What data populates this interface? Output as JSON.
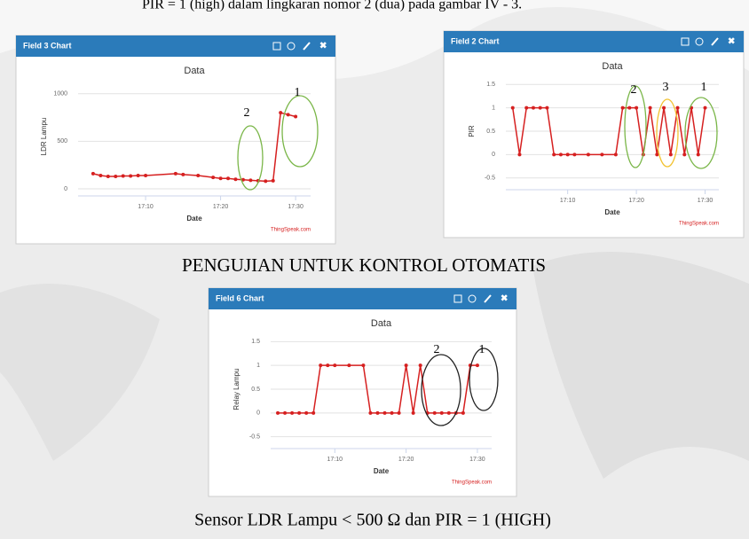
{
  "intro_text": "PIR = 1 (high) dalam lingkaran nomor 2 (dua) pada gambar IV - 3.",
  "heading": "PENGUJIAN UNTUK KONTROL OTOMATIS",
  "caption": "Sensor LDR Lampu < 500 Ω dan PIR = 1 (HIGH)",
  "chart_data": [
    {
      "type": "line",
      "panel_title": "Field 3 Chart",
      "title": "Data",
      "ylabel": "LDR Lampu",
      "xlabel": "Date",
      "credit": "ThingSpeak.com",
      "color": "#d62020",
      "grid": true,
      "x": [
        "17:03",
        "17:04",
        "17:05",
        "17:06",
        "17:07",
        "17:08",
        "17:09",
        "17:10",
        "17:14",
        "17:15",
        "17:17",
        "17:19",
        "17:20",
        "17:21",
        "17:22",
        "17:23",
        "17:24",
        "17:25",
        "17:26",
        "17:27",
        "17:28",
        "17:29",
        "17:30"
      ],
      "values": [
        160,
        140,
        130,
        130,
        135,
        135,
        140,
        140,
        160,
        150,
        140,
        120,
        110,
        110,
        100,
        95,
        90,
        85,
        80,
        85,
        800,
        780,
        760
      ],
      "xlim": [
        "17:01",
        "17:32"
      ],
      "ylim": [
        0,
        1100
      ],
      "xticks": [
        "17:10",
        "17:20",
        "17:30"
      ],
      "yticks": [
        0,
        500,
        1000
      ],
      "annotations": [
        "1",
        "2"
      ]
    },
    {
      "type": "line",
      "panel_title": "Field 2 Chart",
      "title": "Data",
      "ylabel": "PIR",
      "xlabel": "Date",
      "credit": "ThingSpeak.com",
      "color": "#d62020",
      "grid": true,
      "x": [
        "17:02",
        "17:03",
        "17:04",
        "17:05",
        "17:06",
        "17:07",
        "17:08",
        "17:09",
        "17:10",
        "17:11",
        "17:13",
        "17:15",
        "17:17",
        "17:18",
        "17:19",
        "17:20",
        "17:21",
        "17:22",
        "17:23",
        "17:24",
        "17:25",
        "17:26",
        "17:27",
        "17:28",
        "17:29",
        "17:30"
      ],
      "values": [
        1,
        0,
        1,
        1,
        1,
        1,
        0,
        0,
        0,
        0,
        0,
        0,
        0,
        1,
        1,
        1,
        0,
        1,
        0,
        1,
        0,
        1,
        0,
        1,
        0,
        1
      ],
      "xlim": [
        "17:01",
        "17:32"
      ],
      "ylim": [
        -0.6,
        1.6
      ],
      "xticks": [
        "17:10",
        "17:20",
        "17:30"
      ],
      "yticks": [
        -0.5,
        0,
        0.5,
        1,
        1.5
      ],
      "annotations": [
        "2",
        "3",
        "1"
      ]
    },
    {
      "type": "line",
      "panel_title": "Field 6 Chart",
      "title": "Data",
      "ylabel": "Relay Lampu",
      "xlabel": "Date",
      "credit": "ThingSpeak.com",
      "color": "#d62020",
      "grid": true,
      "x": [
        "17:02",
        "17:03",
        "17:04",
        "17:05",
        "17:06",
        "17:07",
        "17:08",
        "17:09",
        "17:10",
        "17:12",
        "17:14",
        "17:15",
        "17:16",
        "17:17",
        "17:18",
        "17:19",
        "17:20",
        "17:21",
        "17:22",
        "17:23",
        "17:24",
        "17:25",
        "17:26",
        "17:27",
        "17:28",
        "17:29",
        "17:30"
      ],
      "values": [
        0,
        0,
        0,
        0,
        0,
        0,
        1,
        1,
        1,
        1,
        1,
        0,
        0,
        0,
        0,
        0,
        1,
        0,
        1,
        0,
        0,
        0,
        0,
        0,
        0,
        1,
        1
      ],
      "xlim": [
        "17:01",
        "17:32"
      ],
      "ylim": [
        -0.6,
        1.6
      ],
      "xticks": [
        "17:10",
        "17:20",
        "17:30"
      ],
      "yticks": [
        -0.5,
        0,
        0.5,
        1,
        1.5
      ],
      "annotations": [
        "2",
        "1"
      ]
    }
  ]
}
